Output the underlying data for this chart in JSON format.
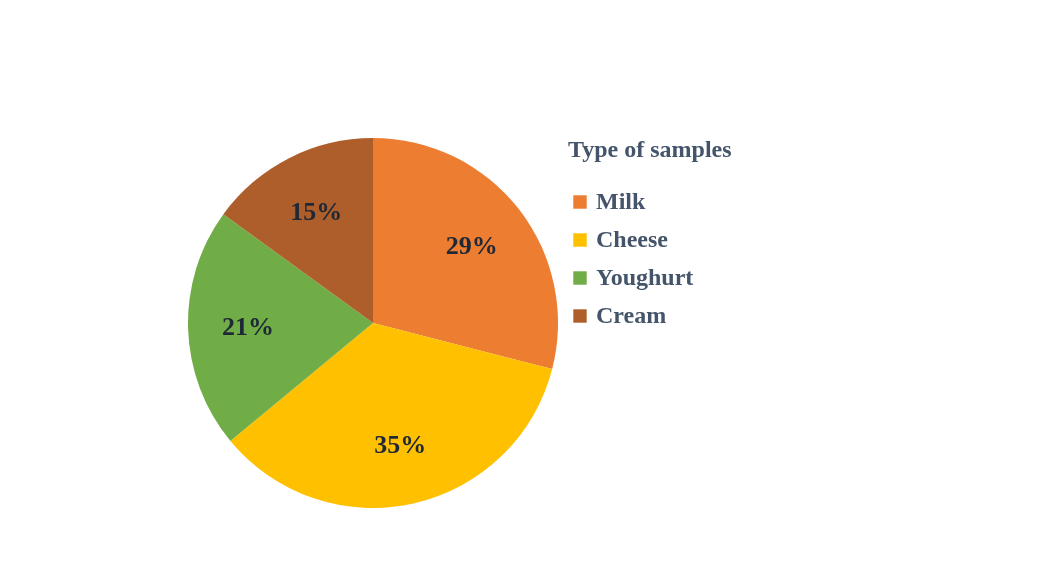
{
  "chart_data": {
    "type": "pie",
    "legend_title": "Type of samples",
    "legend": "right",
    "categories": [
      "Milk",
      "Cheese",
      "Youghurt",
      "Cream"
    ],
    "values": [
      29,
      35,
      21,
      15
    ],
    "value_labels": [
      "29%",
      "35%",
      "21%",
      "15%"
    ],
    "colors": [
      "#ed7d31",
      "#ffc000",
      "#70ad47",
      "#ad5e2a"
    ]
  }
}
